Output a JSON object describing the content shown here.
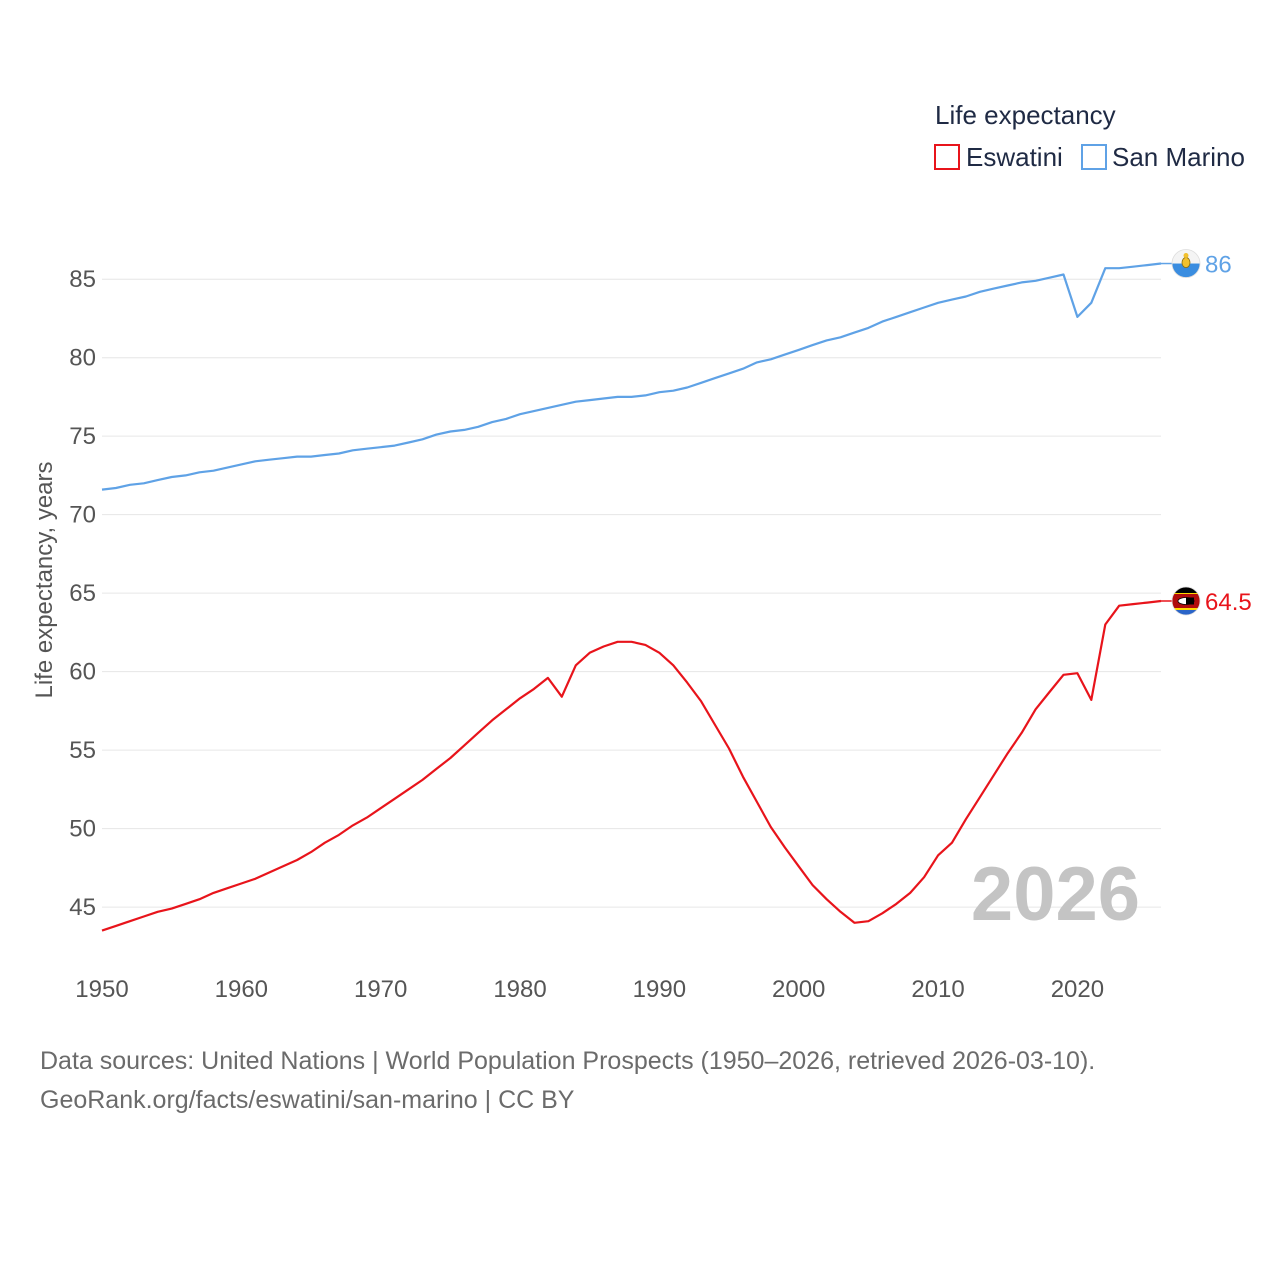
{
  "chart_data": {
    "type": "line",
    "title": "",
    "legend_title": "Life expectancy",
    "ylabel": "Life expectancy, years",
    "xlabel": "",
    "xlim": [
      1950,
      2026
    ],
    "ylim": [
      41.5,
      88.2
    ],
    "y_ticks": [
      45,
      50,
      55,
      60,
      65,
      70,
      75,
      80,
      85
    ],
    "x_ticks": [
      1950,
      1960,
      1970,
      1980,
      1990,
      2000,
      2010,
      2020
    ],
    "legend_position": "top-right",
    "watermark_year": "2026",
    "series": [
      {
        "name": "Eswatini",
        "color": "#e8141b",
        "end_label": "64.5",
        "x": [
          1950,
          1951,
          1952,
          1953,
          1954,
          1955,
          1956,
          1957,
          1958,
          1959,
          1960,
          1961,
          1962,
          1963,
          1964,
          1965,
          1966,
          1967,
          1968,
          1969,
          1970,
          1971,
          1972,
          1973,
          1974,
          1975,
          1976,
          1977,
          1978,
          1979,
          1980,
          1981,
          1982,
          1983,
          1984,
          1985,
          1986,
          1987,
          1988,
          1989,
          1990,
          1991,
          1992,
          1993,
          1994,
          1995,
          1996,
          1997,
          1998,
          1999,
          2000,
          2001,
          2002,
          2003,
          2004,
          2005,
          2006,
          2007,
          2008,
          2009,
          2010,
          2011,
          2012,
          2013,
          2014,
          2015,
          2016,
          2017,
          2018,
          2019,
          2020,
          2021,
          2022,
          2023,
          2024,
          2025,
          2026
        ],
        "values": [
          43.5,
          43.8,
          44.1,
          44.4,
          44.7,
          44.9,
          45.2,
          45.5,
          45.9,
          46.2,
          46.5,
          46.8,
          47.2,
          47.6,
          48.0,
          48.5,
          49.1,
          49.6,
          50.2,
          50.7,
          51.3,
          51.9,
          52.5,
          53.1,
          53.8,
          54.5,
          55.3,
          56.1,
          56.9,
          57.6,
          58.3,
          58.9,
          59.6,
          58.4,
          60.4,
          61.2,
          61.6,
          61.9,
          61.9,
          61.7,
          61.2,
          60.4,
          59.3,
          58.1,
          56.6,
          55.1,
          53.3,
          51.7,
          50.1,
          48.8,
          47.6,
          46.4,
          45.5,
          44.7,
          44.0,
          44.1,
          44.6,
          45.2,
          45.9,
          46.9,
          48.3,
          49.1,
          50.6,
          52.0,
          53.4,
          54.8,
          56.1,
          57.6,
          58.7,
          59.8,
          59.9,
          58.2,
          63.0,
          64.2,
          64.3,
          64.4,
          64.5
        ]
      },
      {
        "name": "San Marino",
        "color": "#5fa2e6",
        "end_label": "86",
        "x": [
          1950,
          1951,
          1952,
          1953,
          1954,
          1955,
          1956,
          1957,
          1958,
          1959,
          1960,
          1961,
          1962,
          1963,
          1964,
          1965,
          1966,
          1967,
          1968,
          1969,
          1970,
          1971,
          1972,
          1973,
          1974,
          1975,
          1976,
          1977,
          1978,
          1979,
          1980,
          1981,
          1982,
          1983,
          1984,
          1985,
          1986,
          1987,
          1988,
          1989,
          1990,
          1991,
          1992,
          1993,
          1994,
          1995,
          1996,
          1997,
          1998,
          1999,
          2000,
          2001,
          2002,
          2003,
          2004,
          2005,
          2006,
          2007,
          2008,
          2009,
          2010,
          2011,
          2012,
          2013,
          2014,
          2015,
          2016,
          2017,
          2018,
          2019,
          2020,
          2021,
          2022,
          2023,
          2024,
          2025,
          2026
        ],
        "values": [
          71.6,
          71.7,
          71.9,
          72.0,
          72.2,
          72.4,
          72.5,
          72.7,
          72.8,
          73.0,
          73.2,
          73.4,
          73.5,
          73.6,
          73.7,
          73.7,
          73.8,
          73.9,
          74.1,
          74.2,
          74.3,
          74.4,
          74.6,
          74.8,
          75.1,
          75.3,
          75.4,
          75.6,
          75.9,
          76.1,
          76.4,
          76.6,
          76.8,
          77.0,
          77.2,
          77.3,
          77.4,
          77.5,
          77.5,
          77.6,
          77.8,
          77.9,
          78.1,
          78.4,
          78.7,
          79.0,
          79.3,
          79.7,
          79.9,
          80.2,
          80.5,
          80.8,
          81.1,
          81.3,
          81.6,
          81.9,
          82.3,
          82.6,
          82.9,
          83.2,
          83.5,
          83.7,
          83.9,
          84.2,
          84.4,
          84.6,
          84.8,
          84.9,
          85.1,
          85.3,
          82.6,
          83.5,
          85.7,
          85.7,
          85.8,
          85.9,
          86.0
        ]
      }
    ]
  },
  "source": {
    "line1": "Data sources: United Nations | World Population Prospects (1950–2026, retrieved 2026-03-10).",
    "line2": "GeoRank.org/facts/eswatini/san-marino | CC BY"
  }
}
